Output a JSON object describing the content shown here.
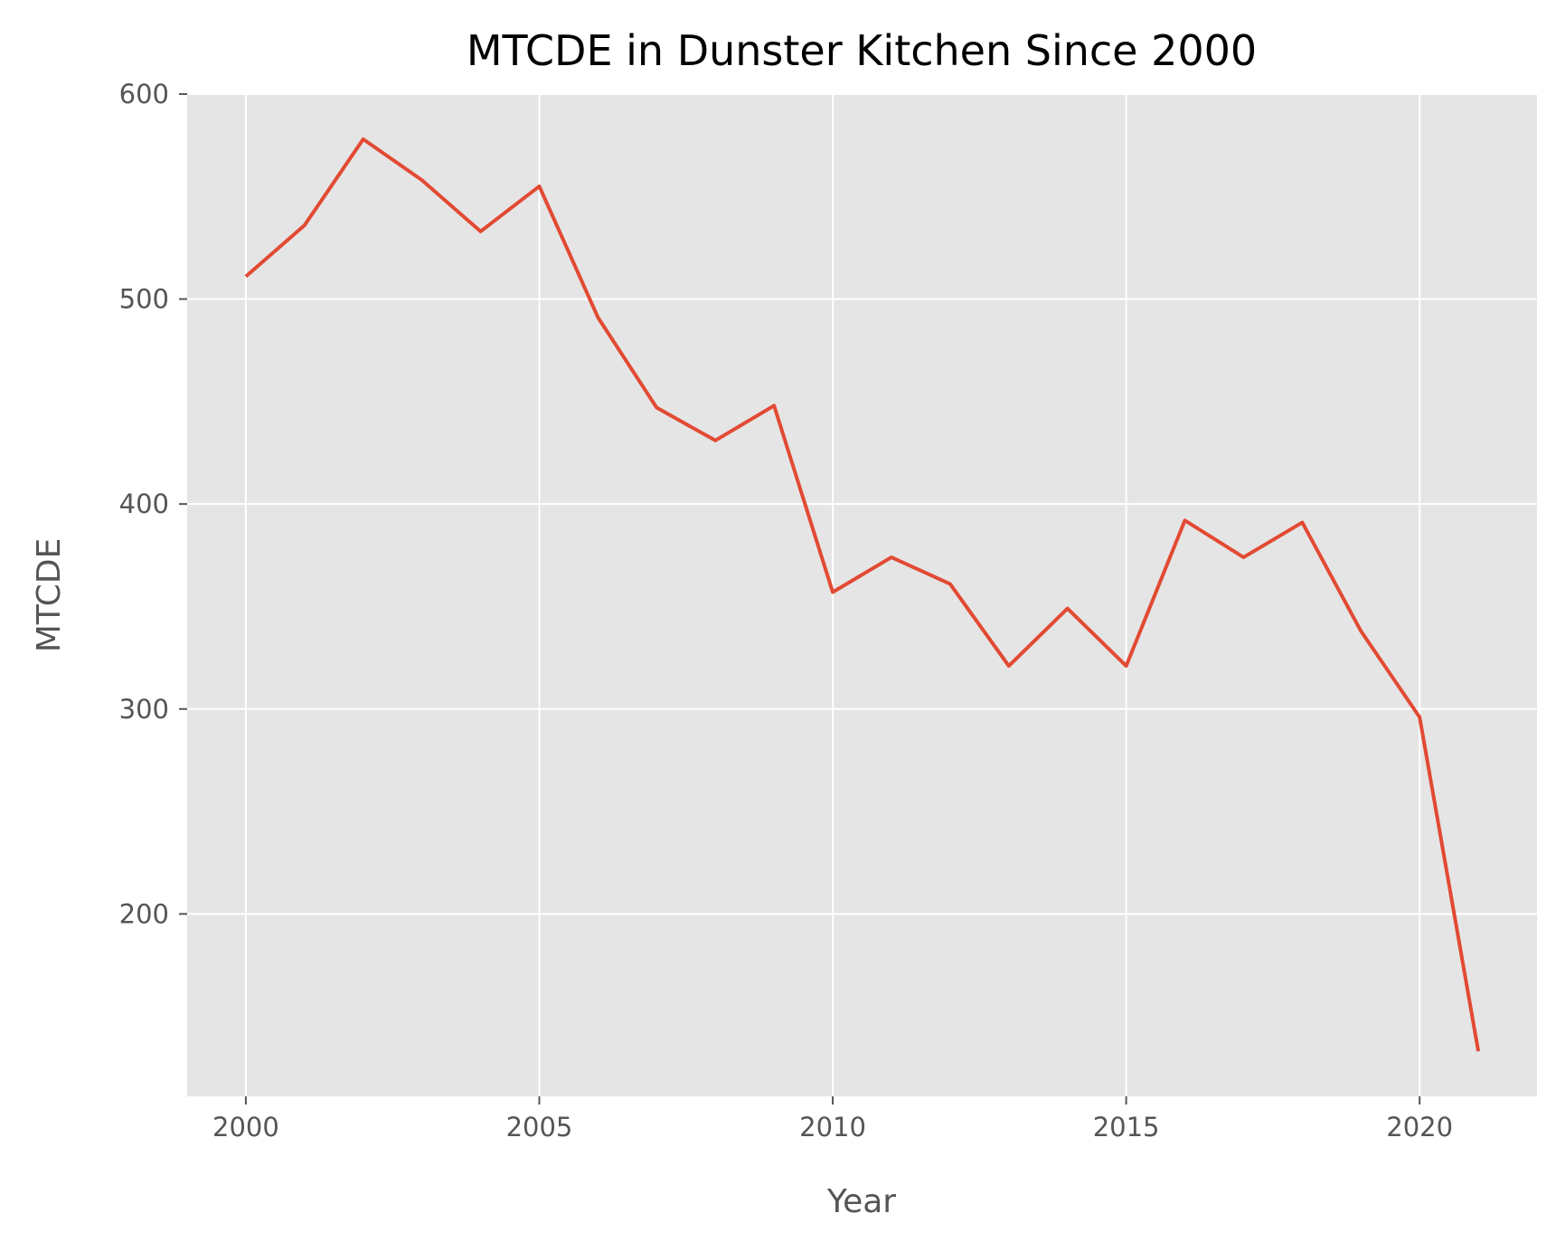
{
  "chart_data": {
    "type": "line",
    "title": "MTCDE in Dunster Kitchen Since 2000",
    "xlabel": "Year",
    "ylabel": "MTCDE",
    "x": [
      2000,
      2001,
      2002,
      2003,
      2004,
      2005,
      2006,
      2007,
      2008,
      2009,
      2010,
      2011,
      2012,
      2013,
      2014,
      2015,
      2016,
      2017,
      2018,
      2019,
      2020,
      2021
    ],
    "series": [
      {
        "values": [
          511,
          536,
          578,
          558,
          533,
          555,
          491,
          447,
          431,
          448,
          357,
          374,
          361,
          321,
          349,
          321,
          392,
          374,
          391,
          338,
          296,
          133
        ],
        "color": "#E24A33"
      }
    ],
    "xticks": [
      "2000",
      "2005",
      "2010",
      "2015",
      "2020"
    ],
    "yticks": [
      "200",
      "300",
      "400",
      "500",
      "600"
    ],
    "xlim": [
      1999,
      2022
    ],
    "ylim": [
      111,
      600
    ],
    "grid": true,
    "background": "#E5E5E5",
    "grid_color": "#FFFFFF"
  }
}
